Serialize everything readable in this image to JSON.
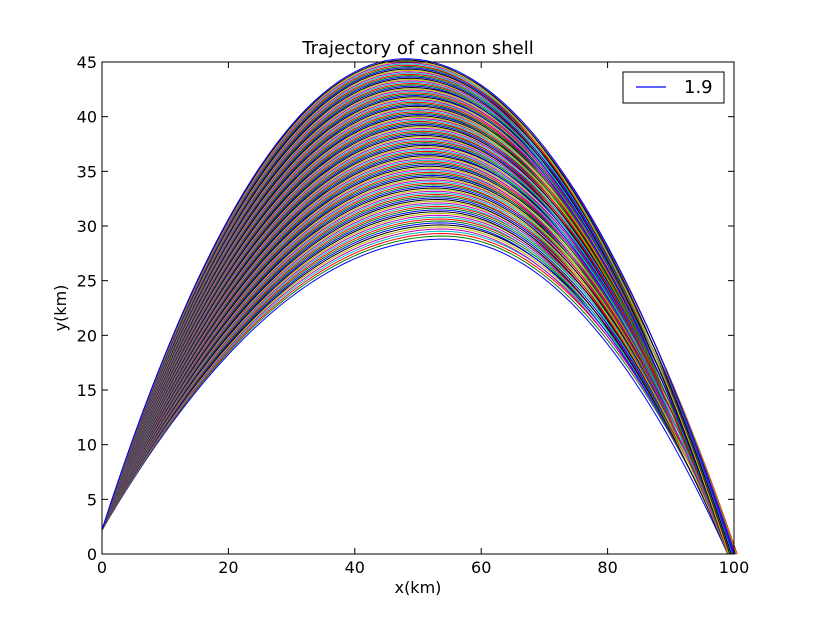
{
  "chart_data": {
    "type": "line",
    "title": "Trajectory of cannon shell",
    "xlabel": "x(km)",
    "ylabel": "y(km)",
    "xlim": [
      0,
      100
    ],
    "ylim": [
      0,
      45
    ],
    "x_ticks": [
      0,
      20,
      40,
      60,
      80,
      100
    ],
    "y_ticks": [
      0,
      5,
      10,
      15,
      20,
      25,
      30,
      35,
      40,
      45
    ],
    "grid": false,
    "legend": {
      "placement": "top-right",
      "entries": [
        {
          "label": "1.9",
          "color": "#0000ff"
        }
      ]
    },
    "family": {
      "description_count": 120,
      "start": {
        "x": 0,
        "y": 2.2
      },
      "end_x_range": [
        99,
        100.5
      ],
      "peak_x_range": [
        48,
        54
      ],
      "peak_y_range": [
        28.8,
        45.3
      ]
    },
    "series_colors": [
      "#0000ff",
      "#008000",
      "#ff0000",
      "#00bfbf",
      "#bf00bf",
      "#bfbf00",
      "#000000"
    ]
  }
}
